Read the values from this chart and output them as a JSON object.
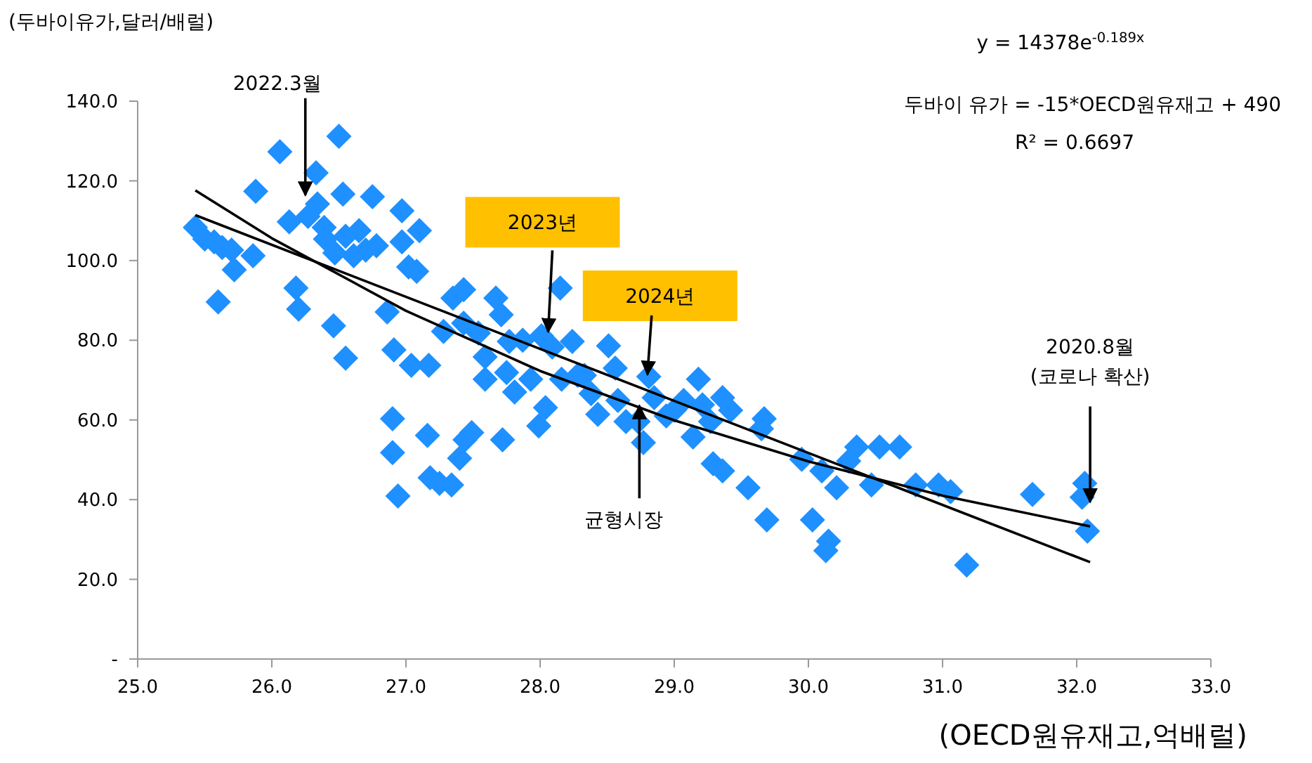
{
  "chart_data": {
    "type": "scatter",
    "xlabel": "(OECD원유재고,억배럴)",
    "ylabel": "(두바이유가,달러/배럴)",
    "xlim": [
      25,
      33
    ],
    "xticks": [
      {
        "value": 25,
        "label": "25.0"
      },
      {
        "value": 26,
        "label": "26.0"
      },
      {
        "value": 27,
        "label": "27.0"
      },
      {
        "value": 28,
        "label": "28.0"
      },
      {
        "value": 29,
        "label": "29.0"
      },
      {
        "value": 30,
        "label": "30.0"
      },
      {
        "value": 31,
        "label": "31.0"
      },
      {
        "value": 32,
        "label": "32.0"
      },
      {
        "value": 33,
        "label": "33.0"
      }
    ],
    "ylim": [
      0,
      140
    ],
    "yticks": [
      {
        "value": 0,
        "label": "-"
      },
      {
        "value": 20,
        "label": "20.0"
      },
      {
        "value": 40,
        "label": "40.0"
      },
      {
        "value": 60,
        "label": "60.0"
      },
      {
        "value": 80,
        "label": "80.0"
      },
      {
        "value": 100,
        "label": "100.0"
      },
      {
        "value": 120,
        "label": "120.0"
      },
      {
        "value": 140,
        "label": "140.0"
      }
    ],
    "grid": false,
    "series": [
      {
        "color": "#1e90ff",
        "marker": "diamond",
        "x": [
          25.43,
          25.5,
          25.57,
          25.63,
          25.7,
          25.6,
          25.72,
          25.86,
          25.88,
          26.06,
          26.13,
          26.18,
          26.2,
          26.27,
          26.33,
          26.34,
          26.39,
          26.46,
          26.5,
          26.53,
          26.55,
          26.61,
          26.65,
          26.47,
          26.4,
          26.55,
          26.7,
          26.75,
          26.78,
          26.86,
          26.9,
          26.9,
          26.94,
          26.91,
          26.97,
          27.02,
          27.1,
          26.97,
          27.04,
          27.08,
          27.16,
          27.18,
          27.25,
          27.34,
          27.4,
          27.44,
          27.49,
          27.28,
          27.35,
          27.43,
          27.54,
          27.59,
          27.67,
          27.75,
          27.71,
          27.77,
          27.81,
          27.72,
          27.87,
          28.01,
          27.93,
          27.99,
          28.04,
          28.09,
          28.15,
          28.24,
          28.28,
          28.33,
          28.38,
          28.43,
          28.51,
          28.56,
          28.64,
          28.73,
          28.77,
          28.81,
          28.85,
          28.94,
          29.0,
          29.07,
          29.14,
          29.18,
          29.21,
          29.27,
          29.29,
          29.36,
          29.42,
          29.36,
          29.55,
          29.65,
          29.67,
          29.69,
          29.95,
          30.03,
          30.1,
          30.15,
          30.13,
          30.21,
          30.3,
          30.36,
          30.47,
          30.53,
          30.68,
          30.8,
          30.97,
          31.06,
          31.18,
          31.67,
          32.06,
          32.08,
          32.04,
          27.43,
          27.59,
          27.17,
          28.16,
          28.58
        ],
        "values": [
          108.3,
          105.4,
          104.7,
          103.3,
          102.6,
          89.6,
          97.7,
          101.2,
          117.4,
          127.3,
          109.7,
          93.1,
          87.8,
          111.1,
          122.0,
          114.2,
          108.3,
          83.6,
          131.2,
          116.7,
          75.5,
          101.2,
          107.5,
          101.9,
          105.4,
          106.1,
          102.6,
          116.0,
          103.7,
          87.1,
          60.3,
          51.8,
          40.9,
          77.6,
          112.5,
          98.4,
          107.5,
          104.7,
          73.7,
          97.3,
          56.1,
          45.5,
          44.1,
          43.7,
          50.4,
          55.0,
          56.8,
          82.2,
          90.6,
          92.7,
          81.8,
          75.8,
          90.6,
          71.9,
          86.4,
          79.7,
          67.0,
          55.0,
          80.0,
          81.1,
          70.2,
          58.5,
          63.1,
          78.3,
          93.1,
          79.7,
          71.2,
          71.2,
          66.6,
          61.4,
          78.6,
          73.0,
          59.6,
          59.6,
          54.3,
          70.9,
          65.6,
          61.0,
          62.4,
          64.9,
          55.7,
          70.2,
          63.8,
          59.6,
          49.0,
          65.6,
          62.4,
          47.2,
          43.0,
          57.8,
          60.3,
          34.9,
          50.1,
          34.9,
          47.2,
          29.6,
          27.2,
          43.0,
          49.7,
          53.2,
          43.7,
          53.2,
          53.2,
          43.7,
          43.7,
          42.0,
          23.6,
          41.3,
          44.1,
          32.1,
          40.6,
          84.3,
          70.2,
          73.7,
          70.2,
          64.9
        ]
      },
      {
        "type": "line",
        "color": "#000000",
        "x": [
          25.43,
          32.1
        ],
        "values": [
          111.4,
          24.3
        ]
      },
      {
        "type": "line",
        "color": "#000000",
        "x": [
          25.43,
          26,
          27,
          28,
          29,
          30,
          31,
          32.1
        ],
        "values": [
          117.6,
          105.6,
          87.4,
          72.3,
          59.9,
          49.6,
          41.0,
          33.3
        ]
      }
    ],
    "annotations": [
      {
        "text": "2022.3월",
        "x": 26.25,
        "y": 115
      },
      {
        "text": "2023년",
        "x": 28.06,
        "y": 80.7
      },
      {
        "text": "2024년",
        "x": 28.8,
        "y": 70
      },
      {
        "text": "균형시장",
        "x": 28.74,
        "y": 65
      },
      {
        "text": "2020.8월\n(코로나 확산)",
        "x": 32.1,
        "y": 38
      },
      "y = 14378e$^{-0.189x}$",
      "두바이 유가 = -15*OECD원유재고 + 490",
      "R² = 0.6697"
    ]
  }
}
